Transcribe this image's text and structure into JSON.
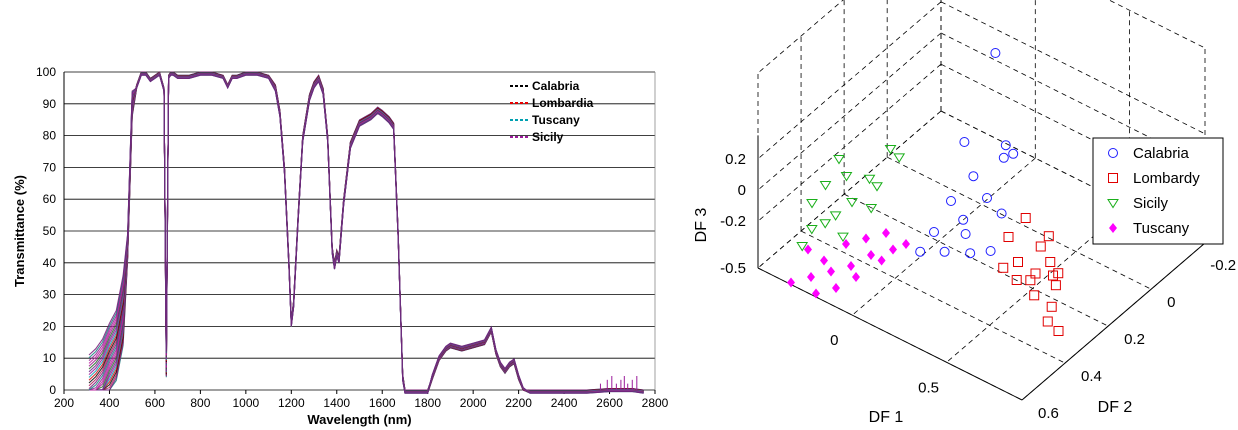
{
  "chart_data": [
    {
      "type": "line",
      "xlabel": "Wavelength (nm)",
      "ylabel": "Transmittance (%)",
      "xlim": [
        200,
        2800
      ],
      "ylim": [
        0,
        100
      ],
      "xticks": [
        200,
        400,
        600,
        800,
        1000,
        1200,
        1400,
        1600,
        1800,
        2000,
        2200,
        2400,
        2600,
        2800
      ],
      "yticks": [
        0,
        10,
        20,
        30,
        40,
        50,
        60,
        70,
        80,
        90,
        100
      ],
      "grid": "horizontal",
      "legend_position": "top-right",
      "series": [
        {
          "name": "Calabria",
          "color": "#000000",
          "dash": "dashed"
        },
        {
          "name": "Lombardia",
          "color": "#e60000",
          "dash": "dashed"
        },
        {
          "name": "Tuscany",
          "color": "#00a0b0",
          "dash": "dashed"
        },
        {
          "name": "Sicily",
          "color": "#9a1a9a",
          "dash": "dashed"
        }
      ],
      "spectrum": {
        "x": [
          310,
          340,
          370,
          400,
          430,
          460,
          480,
          500,
          520,
          540,
          560,
          580,
          600,
          620,
          640,
          650,
          660,
          670,
          680,
          700,
          750,
          800,
          850,
          900,
          920,
          940,
          960,
          1000,
          1050,
          1100,
          1130,
          1150,
          1170,
          1190,
          1200,
          1210,
          1230,
          1250,
          1280,
          1300,
          1320,
          1340,
          1360,
          1380,
          1390,
          1400,
          1410,
          1430,
          1460,
          1500,
          1550,
          1580,
          1600,
          1630,
          1650,
          1670,
          1690,
          1700,
          1720,
          1760,
          1800,
          1820,
          1850,
          1880,
          1900,
          1950,
          2000,
          2050,
          2080,
          2100,
          2120,
          2140,
          2160,
          2180,
          2200,
          2220,
          2250,
          2300,
          2400,
          2500,
          2600,
          2700,
          2750
        ],
        "y": [
          0,
          2,
          5,
          10,
          14,
          25,
          45,
          90,
          96,
          100,
          100,
          98,
          99,
          100,
          95,
          4,
          99,
          100,
          100,
          99,
          99,
          100,
          100,
          99,
          96,
          99,
          99,
          100,
          100,
          99,
          96,
          88,
          70,
          40,
          22,
          28,
          55,
          80,
          93,
          97,
          99,
          95,
          80,
          45,
          40,
          44,
          42,
          60,
          78,
          85,
          87,
          89,
          88,
          86,
          84,
          50,
          5,
          0,
          0,
          0,
          0,
          4,
          10,
          13,
          14,
          13,
          14,
          15,
          19,
          12,
          8,
          6,
          8,
          9,
          4,
          0,
          0,
          0,
          0,
          0,
          0.5,
          0.5,
          0
        ],
        "band_low": [
          310,
          440,
          0,
          480,
          10,
          520,
          60,
          600,
          85,
          650,
          0,
          660,
          88
        ],
        "spread_note": ""
      }
    },
    {
      "type": "scatter",
      "xlabel": "DF 1",
      "ylabel": "DF 2",
      "zlabel": "DF 3",
      "df1_ticks": [
        "0",
        "0.5"
      ],
      "df2_ticks": [
        "-0.2",
        "0",
        "0.2",
        "0.4",
        "0.6"
      ],
      "df3_ticks": [
        "0.2",
        "0",
        "-0.2",
        "-0.5"
      ],
      "legend_position": "top-right",
      "series": [
        {
          "name": "Calabria",
          "color": "#1f1fff",
          "marker": "circle",
          "points": [
            [
              0.22,
              0.7,
              0.82
            ],
            [
              0.12,
              0.55,
              0.5
            ],
            [
              0.18,
              0.48,
              0.38
            ],
            [
              0.3,
              0.58,
              0.48
            ],
            [
              0.28,
              0.62,
              0.42
            ],
            [
              0.25,
              0.45,
              0.3
            ],
            [
              0.35,
              0.52,
              0.46
            ],
            [
              0.1,
              0.4,
              0.3
            ],
            [
              0.15,
              0.42,
              0.22
            ],
            [
              0.05,
              0.3,
              0.2
            ],
            [
              0.18,
              0.35,
              0.18
            ],
            [
              0.33,
              0.4,
              0.25
            ],
            [
              0.22,
              0.28,
              0.12
            ],
            [
              0.12,
              0.22,
              0.14
            ],
            [
              0.28,
              0.4,
              0.1
            ],
            [
              0.02,
              0.18,
              0.15
            ]
          ]
        },
        {
          "name": "Lombardy",
          "color": "#e00000",
          "marker": "square",
          "points": [
            [
              0.3,
              0.1,
              0.1
            ],
            [
              0.38,
              0.18,
              0.2
            ],
            [
              0.45,
              0.25,
              0.05
            ],
            [
              0.4,
              0.05,
              0.0
            ],
            [
              0.5,
              0.1,
              -0.05
            ],
            [
              0.55,
              0.2,
              0.0
            ],
            [
              0.48,
              0.3,
              0.1
            ],
            [
              0.6,
              0.15,
              -0.05
            ],
            [
              0.35,
              -0.05,
              -0.02
            ],
            [
              0.42,
              0.0,
              -0.08
            ],
            [
              0.52,
              0.05,
              -0.15
            ],
            [
              0.62,
              0.1,
              -0.2
            ],
            [
              0.65,
              0.0,
              -0.25
            ],
            [
              0.7,
              0.05,
              -0.3
            ],
            [
              0.45,
              0.12,
              -0.1
            ],
            [
              0.58,
              0.22,
              -0.12
            ],
            [
              0.55,
              0.3,
              -0.08
            ]
          ]
        },
        {
          "name": "Sicily",
          "color": "#1aaf1a",
          "marker": "triangle",
          "points": [
            [
              -0.3,
              0.4,
              0.55
            ],
            [
              -0.25,
              0.35,
              0.45
            ],
            [
              -0.35,
              0.3,
              0.4
            ],
            [
              -0.2,
              0.25,
              0.3
            ],
            [
              -0.4,
              0.2,
              0.3
            ],
            [
              -0.28,
              0.22,
              0.22
            ],
            [
              -0.15,
              0.45,
              0.42
            ],
            [
              -0.1,
              0.4,
              0.38
            ],
            [
              -0.32,
              0.15,
              0.18
            ],
            [
              -0.38,
              0.1,
              0.15
            ],
            [
              -0.22,
              0.12,
              0.1
            ],
            [
              -0.05,
              0.5,
              0.6
            ],
            [
              0.0,
              0.48,
              0.55
            ],
            [
              -0.12,
              0.35,
              0.25
            ],
            [
              -0.42,
              0.05,
              0.05
            ]
          ]
        },
        {
          "name": "Tuscany",
          "color": "#ff00ff",
          "marker": "diamond",
          "points": [
            [
              -0.4,
              0.0,
              0.05
            ],
            [
              -0.3,
              -0.05,
              -0.05
            ],
            [
              -0.2,
              0.05,
              0.1
            ],
            [
              -0.1,
              0.1,
              0.15
            ],
            [
              0.0,
              0.15,
              0.2
            ],
            [
              -0.25,
              -0.1,
              -0.15
            ],
            [
              -0.15,
              -0.05,
              -0.1
            ],
            [
              -0.35,
              -0.15,
              -0.2
            ],
            [
              -0.05,
              0.0,
              0.0
            ],
            [
              0.05,
              0.1,
              0.05
            ],
            [
              0.1,
              0.2,
              0.1
            ],
            [
              -0.45,
              -0.2,
              -0.25
            ],
            [
              -0.2,
              -0.2,
              -0.3
            ],
            [
              -0.3,
              -0.25,
              -0.35
            ],
            [
              0.02,
              -0.05,
              -0.05
            ],
            [
              -0.1,
              -0.15,
              -0.2
            ]
          ]
        }
      ]
    }
  ]
}
